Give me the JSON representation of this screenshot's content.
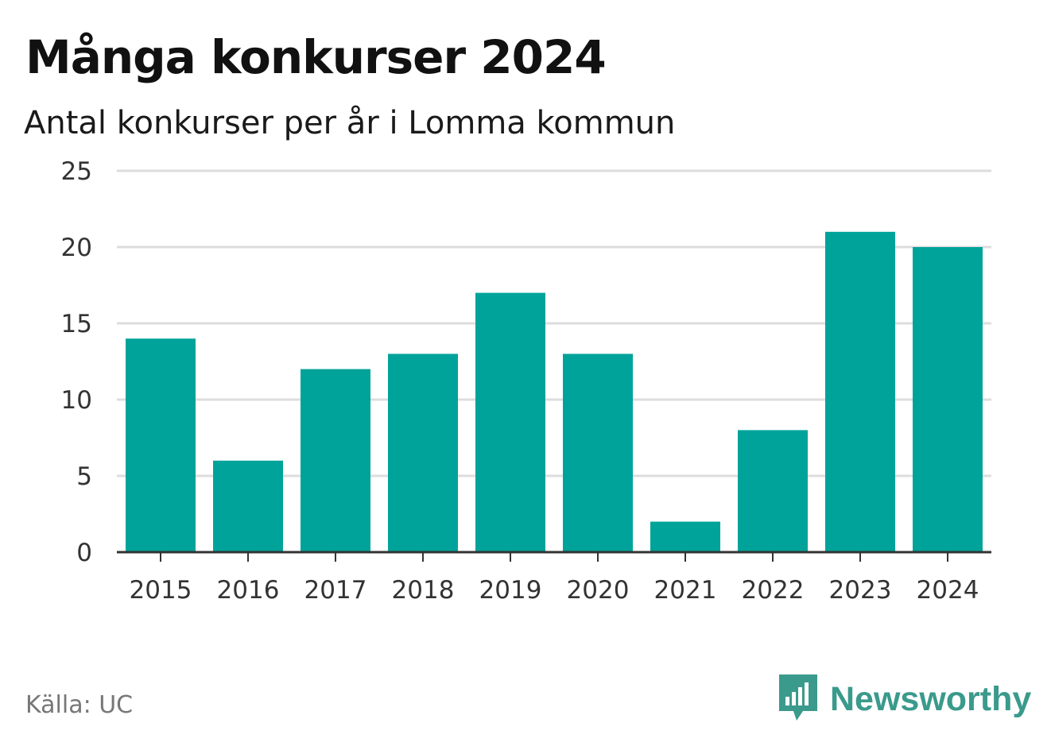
{
  "title": "Många konkurser 2024",
  "subtitle": "Antal konkurser per år i Lomma kommun",
  "source": "Källa: UC",
  "brand": {
    "name": "Newsworthy",
    "icon": "newsworthy-logo-icon",
    "color": "#3a9a8c"
  },
  "colors": {
    "bar": "#00a39a",
    "grid": "#dddddd",
    "axis": "#333333"
  },
  "chart_data": {
    "type": "bar",
    "title": "Många konkurser 2024",
    "subtitle": "Antal konkurser per år i Lomma kommun",
    "xlabel": "",
    "ylabel": "",
    "categories": [
      "2015",
      "2016",
      "2017",
      "2018",
      "2019",
      "2020",
      "2021",
      "2022",
      "2023",
      "2024"
    ],
    "values": [
      14,
      6,
      12,
      13,
      17,
      13,
      2,
      8,
      21,
      20
    ],
    "ylim": [
      0,
      25
    ],
    "yticks": [
      0,
      5,
      10,
      15,
      20,
      25
    ],
    "grid": true,
    "legend": "none"
  }
}
